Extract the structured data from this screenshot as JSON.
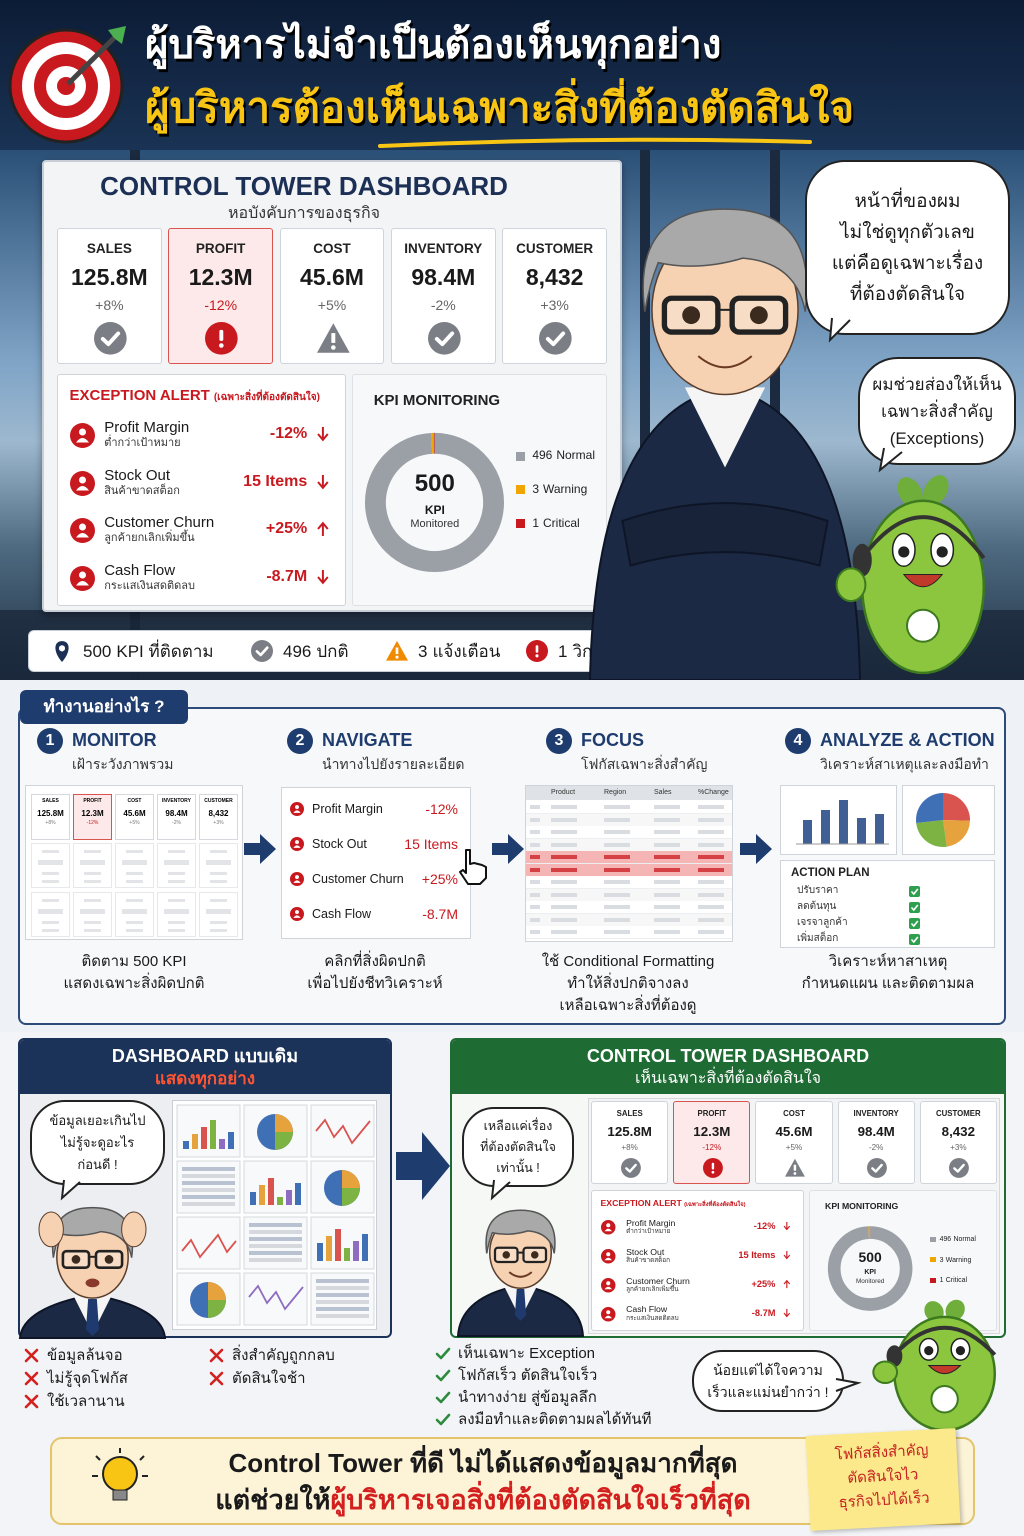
{
  "header": {
    "title": "ผู้บริหารไม่จำเป็นต้องเห็นทุกอย่าง",
    "subtitle": "ผู้บริหารต้องเห็นเฉพาะสิ่งที่ต้องตัดสินใจ"
  },
  "dashboard": {
    "title": "CONTROL TOWER DASHBOARD",
    "subtitle": "หอบังคับการของธุรกิจ",
    "kpis": [
      {
        "label": "SALES",
        "value": "125.8M",
        "change": "+8%",
        "status": "ok"
      },
      {
        "label": "PROFIT",
        "value": "12.3M",
        "change": "-12%",
        "status": "critical"
      },
      {
        "label": "COST",
        "value": "45.6M",
        "change": "+5%",
        "status": "warning"
      },
      {
        "label": "INVENTORY",
        "value": "98.4M",
        "change": "-2%",
        "status": "ok"
      },
      {
        "label": "CUSTOMER",
        "value": "8,432",
        "change": "+3%",
        "status": "ok"
      }
    ],
    "exception": {
      "title": "EXCEPTION ALERT",
      "note": "(เฉพาะสิ่งที่ต้องตัดสินใจ)",
      "items": [
        {
          "name": "Profit Margin",
          "detail": "ต่ำกว่าเป้าหมาย",
          "value": "-12%",
          "trend": "down"
        },
        {
          "name": "Stock Out",
          "detail": "สินค้าขาดสต็อก",
          "value": "15 Items",
          "trend": "down"
        },
        {
          "name": "Customer Churn",
          "detail": "ลูกค้ายกเลิกเพิ่มขึ้น",
          "value": "+25%",
          "trend": "up"
        },
        {
          "name": "Cash Flow",
          "detail": "กระแสเงินสดติดลบ",
          "value": "-8.7M",
          "trend": "down"
        }
      ]
    },
    "monitoring": {
      "title": "KPI MONITORING",
      "total": 500,
      "unit": "KPI",
      "caption": "Monitored",
      "segments": [
        {
          "value": 496,
          "label": "Normal",
          "color": "#9aa0a6"
        },
        {
          "value": 3,
          "label": "Warning",
          "color": "#f0a500"
        },
        {
          "value": 1,
          "label": "Critical",
          "color": "#c8191f"
        }
      ]
    }
  },
  "status_bar": {
    "items": [
      {
        "label": "KPI ที่ติดตาม",
        "icon": "pin"
      },
      {
        "label": "ปกติ",
        "icon": "ok"
      },
      {
        "label": "แจ้งเตือน",
        "icon": "warning"
      },
      {
        "label": "วิกฤต",
        "icon": "critical"
      }
    ]
  },
  "speech": {
    "executive": [
      "หน้าที่ของผม",
      "ไม่ใช่ดูทุกตัวเลข",
      "แต่คือดูเฉพาะเรื่อง",
      "ที่ต้องตัดสินใจ"
    ],
    "mascot": [
      "ผมช่วยส่องให้เห็น",
      "เฉพาะสิ่งสำคัญ",
      "(Exceptions)"
    ]
  },
  "how": {
    "title": "ทำงานอย่างไร ?",
    "steps": [
      {
        "number": 1,
        "title": "MONITOR",
        "subtitle": "เฝ้าระวังภาพรวม",
        "caption": [
          "ติดตาม 500 KPI",
          "แสดงเฉพาะสิ่งผิดปกติ"
        ]
      },
      {
        "number": 2,
        "title": "NAVIGATE",
        "subtitle": "นำทางไปยังรายละเอียด",
        "caption": [
          "คลิกที่สิ่งผิดปกติ",
          "เพื่อไปยังชีทวิเคราะห์"
        ]
      },
      {
        "number": 3,
        "title": "FOCUS",
        "subtitle": "โฟกัสเฉพาะสิ่งสำคัญ",
        "caption": [
          "ใช้ Conditional Formatting",
          "ทำให้สิ่งปกติจางลง",
          "เหลือเฉพาะสิ่งที่ต้องดู"
        ]
      },
      {
        "number": 4,
        "title": "ANALYZE & ACTION",
        "subtitle": "วิเคราะห์สาเหตุและลงมือทำ",
        "caption": [
          "วิเคราะห์หาสาเหตุ",
          "กำหนดแผน และติดตามผล"
        ]
      }
    ],
    "table_headers": [
      "Product",
      "Region",
      "Sales",
      "%Change"
    ],
    "action_plan": {
      "title": "ACTION PLAN",
      "items": [
        "ปรับราคา",
        "ลดต้นทุน",
        "เจรจาลูกค้า",
        "เพิ่มสต็อก"
      ]
    }
  },
  "compare": {
    "old": {
      "title": "DASHBOARD แบบเดิม",
      "subtitle": "แสดงทุกอย่าง",
      "speech": [
        "ข้อมูลเยอะเกินไป",
        "ไม่รู้จะดูอะไร",
        "ก่อนดี !"
      ],
      "cons": [
        "ข้อมูลล้นจอ",
        "ไม่รู้จุดโฟกัส",
        "ใช้เวลานาน",
        "สิ่งสำคัญถูกกลบ",
        "ตัดสินใจช้า"
      ]
    },
    "new": {
      "title": "CONTROL TOWER DASHBOARD",
      "subtitle": "เห็นเฉพาะสิ่งที่ต้องตัดสินใจ",
      "speech": [
        "เหลือแค่เรื่อง",
        "ที่ต้องตัดสินใจ",
        "เท่านั้น !"
      ],
      "pros": [
        "เห็นเฉพาะ Exception",
        "โฟกัสเร็ว ตัดสินใจเร็ว",
        "นำทางง่าย สู่ข้อมูลลึก",
        "ลงมือทำและติดตามผลได้ทันที"
      ],
      "mascot_speech": [
        "น้อยแต่ได้ใจความ",
        "เร็วและแม่นยำกว่า !"
      ]
    }
  },
  "conclusion": {
    "line1": "Control Tower ที่ดี ไม่ได้แสดงข้อมูลมากที่สุด",
    "line2_lead": "แต่ช่วยให้",
    "line2_highlight": "ผู้บริหารเจอสิ่งที่ต้องตัดสินใจเร็วที่สุด",
    "note": [
      "โฟกัสสิ่งสำคัญ",
      "ตัดสินใจไว",
      "ธุรกิจไปได้เร็ว"
    ]
  }
}
